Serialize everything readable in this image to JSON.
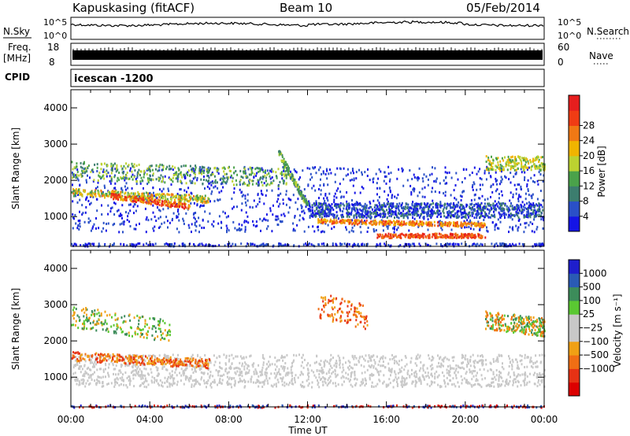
{
  "header": {
    "station": "Kapuskasing (fitACF)",
    "beam": "Beam 10",
    "date": "05/Feb/2014"
  },
  "top_panels": {
    "nsky_label": "N.Sky",
    "nsky_ticks": [
      "10^5",
      "10^0"
    ],
    "nsearch_label": "N.Search",
    "freq_label_1": "Freq.",
    "freq_label_2": "[MHz]",
    "freq_ticks": [
      "18",
      "8"
    ],
    "nave_label": "Nave",
    "nave_ticks": [
      "60",
      "0"
    ],
    "cpid_label": "CPID",
    "cpid_value": "icescan -1200"
  },
  "chart_data": [
    {
      "type": "heatmap",
      "quantity": "power",
      "ylabel": "Slant Range [km]",
      "xlabel": "Time UT",
      "x_ticks": [
        "00:00",
        "04:00",
        "08:00",
        "12:00",
        "16:00",
        "20:00",
        "00:00"
      ],
      "xlim_hours": [
        0,
        24
      ],
      "y_ticks": [
        1000,
        2000,
        3000,
        4000
      ],
      "ylim_km": [
        180,
        4500
      ],
      "colorbar": {
        "label": "Power [dB]",
        "tick_values": [
          4,
          8,
          12,
          16,
          20,
          24,
          28
        ],
        "colors": [
          "#1414e6",
          "#2a50c8",
          "#3c7d6e",
          "#4aa24a",
          "#bcd230",
          "#f0b400",
          "#f07814",
          "#f03c14",
          "#e61e1e"
        ]
      }
    },
    {
      "type": "heatmap",
      "quantity": "velocity",
      "ylabel": "Slant Range [km]",
      "xlabel": "Time UT",
      "x_ticks": [
        "00:00",
        "04:00",
        "08:00",
        "12:00",
        "16:00",
        "20:00",
        "00:00"
      ],
      "xlim_hours": [
        0,
        24
      ],
      "y_ticks": [
        1000,
        2000,
        3000,
        4000
      ],
      "ylim_km": [
        180,
        4500
      ],
      "colorbar": {
        "label": "Velocity [m s⁻¹]",
        "tick_labels": [
          "1000",
          "500",
          "100",
          "25",
          "−25",
          "−100",
          "−500",
          "−1000"
        ],
        "colors": [
          "#1e1ecc",
          "#2a5ab4",
          "#3c8c5a",
          "#5ac832",
          "#c8c8c8",
          "#c8c8c8",
          "#f0a014",
          "#f06e14",
          "#e63214",
          "#dc0000"
        ]
      }
    }
  ],
  "footer": {
    "time_label": "Time UT"
  }
}
